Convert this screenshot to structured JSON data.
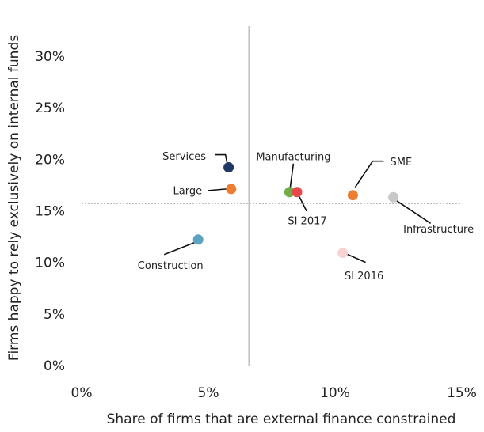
{
  "chart_data": {
    "type": "scatter",
    "x_label": "Share of firms that are external finance constrained",
    "y_label": "Firms happy to rely exclusively on internal funds",
    "points": [
      {
        "name": "Services",
        "x": 5.8,
        "y": 19.3,
        "color": "#1f3864"
      },
      {
        "name": "Large",
        "x": 5.9,
        "y": 17.2,
        "color": "#ed7d31"
      },
      {
        "name": "Construction",
        "x": 4.6,
        "y": 12.3,
        "color": "#5ba3c0"
      },
      {
        "name": "Manufacturing",
        "x": 8.2,
        "y": 16.9,
        "color": "#70ad47"
      },
      {
        "name": "SI 2017",
        "x": 8.5,
        "y": 16.9,
        "color": "#e8474c"
      },
      {
        "name": "SME",
        "x": 10.7,
        "y": 16.6,
        "color": "#ed7d31"
      },
      {
        "name": "Infrastructure",
        "x": 12.3,
        "y": 16.4,
        "color": "#c8c8c8"
      },
      {
        "name": "SI 2016",
        "x": 10.3,
        "y": 11.0,
        "color": "#f9d3d3"
      }
    ],
    "reference_lines": {
      "x": 6.6,
      "y": 15.8
    },
    "xlim": [
      0,
      15
    ],
    "xticks": [
      {
        "value": 0,
        "label": "0%"
      },
      {
        "value": 5,
        "label": "5%"
      },
      {
        "value": 10,
        "label": "10%"
      },
      {
        "value": 15,
        "label": "15%"
      }
    ],
    "ylim": [
      0,
      33
    ],
    "yticks": [
      {
        "value": 0,
        "label": "0%"
      },
      {
        "value": 5,
        "label": "5%"
      },
      {
        "value": 10,
        "label": "10%"
      },
      {
        "value": 15,
        "label": "15%"
      },
      {
        "value": 20,
        "label": "20%"
      },
      {
        "value": 25,
        "label": "25%"
      },
      {
        "value": 30,
        "label": "30%"
      }
    ]
  }
}
